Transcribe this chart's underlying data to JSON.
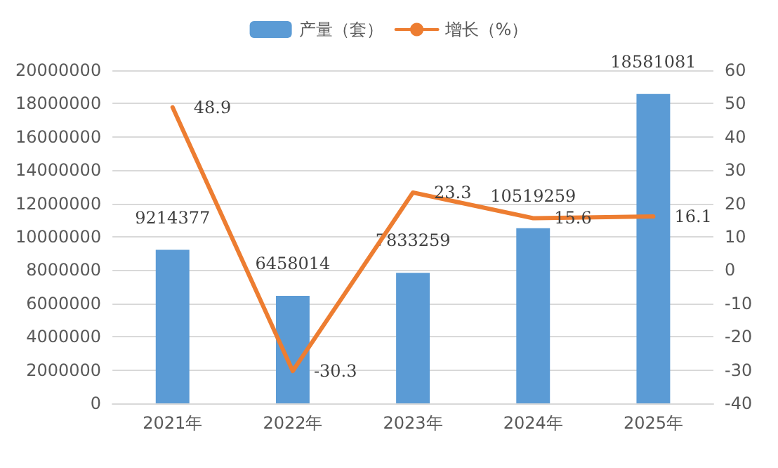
{
  "chart_data": {
    "type": "bar",
    "categories": [
      "2021年",
      "2022年",
      "2023年",
      "2024年",
      "2025年"
    ],
    "series": [
      {
        "name": "产量（套）",
        "color": "#5b9bd5",
        "values": [
          9214377,
          6458014,
          7833259,
          10519259,
          18581081
        ]
      },
      {
        "name": "增长（%）",
        "type": "line",
        "axis": "y2",
        "color": "#ed7d31",
        "values": [
          48.9,
          -30.3,
          23.3,
          15.6,
          16.1
        ]
      }
    ],
    "ylim": [
      0,
      20000000
    ],
    "yticks": [
      0,
      2000000,
      4000000,
      6000000,
      8000000,
      10000000,
      12000000,
      14000000,
      16000000,
      18000000,
      20000000
    ],
    "y2lim": [
      -40,
      60
    ],
    "y2ticks": [
      -40,
      -30,
      -20,
      -10,
      0,
      10,
      20,
      30,
      40,
      50,
      60
    ],
    "grid": "y",
    "legend": "top",
    "data_labels": true,
    "marker": "none",
    "line_style": "solid"
  }
}
